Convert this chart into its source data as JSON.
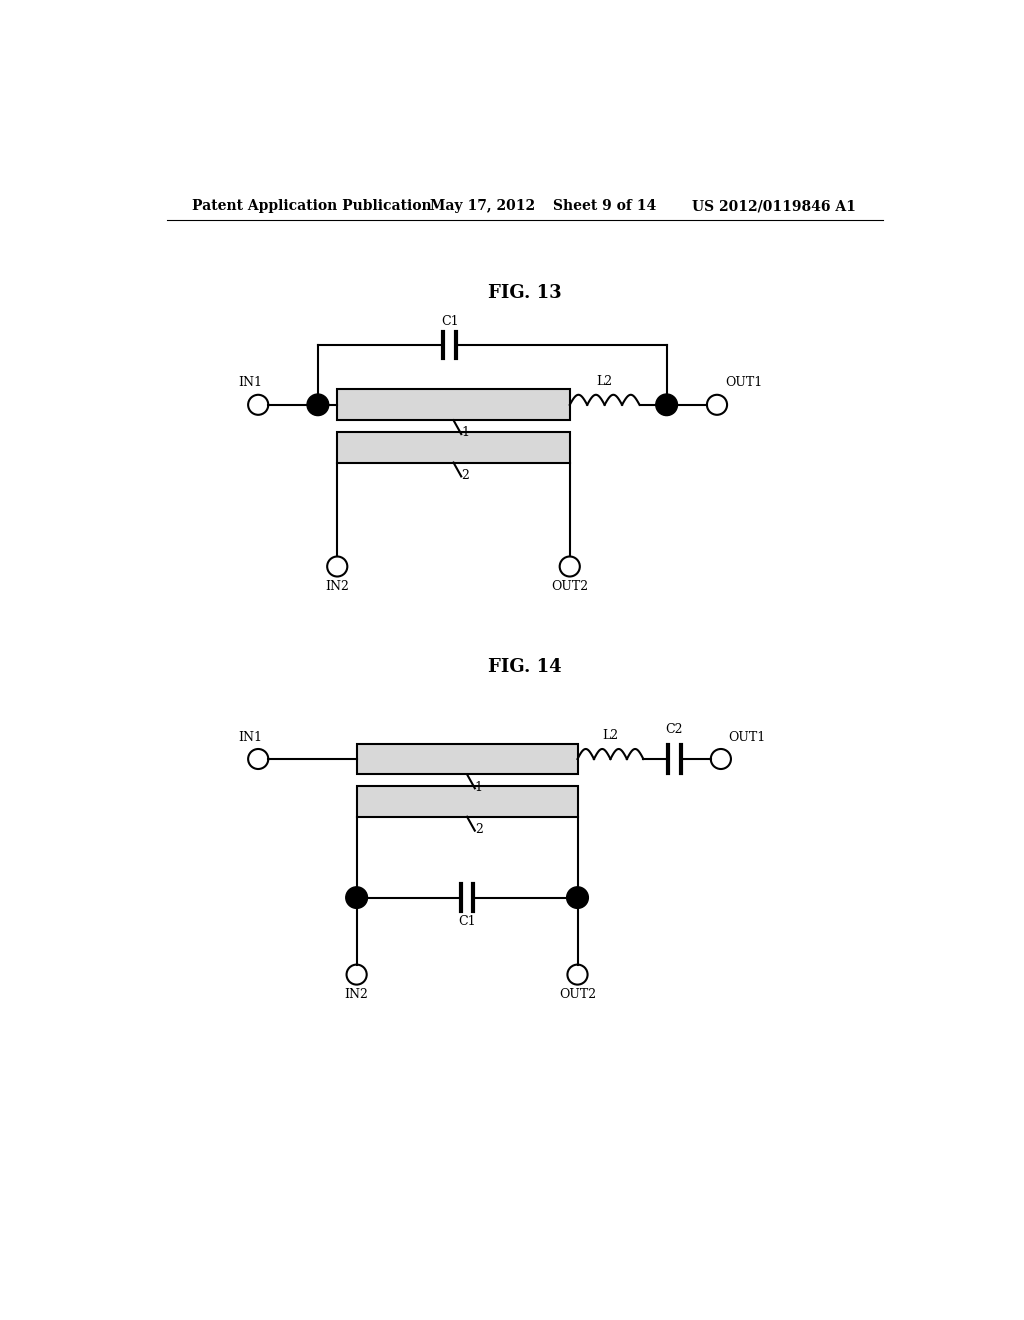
{
  "bg_color": "#ffffff",
  "header_text": "Patent Application Publication",
  "header_date": "May 17, 2012",
  "header_sheet": "Sheet 9 of 14",
  "header_patent": "US 2012/0119846 A1",
  "fig13_title": "FIG. 13",
  "fig14_title": "FIG. 14",
  "line_color": "#000000",
  "line_width": 1.5,
  "font_size_header": 10,
  "font_size_label": 9,
  "font_size_fig": 13,
  "coupler_fill": "#d8d8d8"
}
